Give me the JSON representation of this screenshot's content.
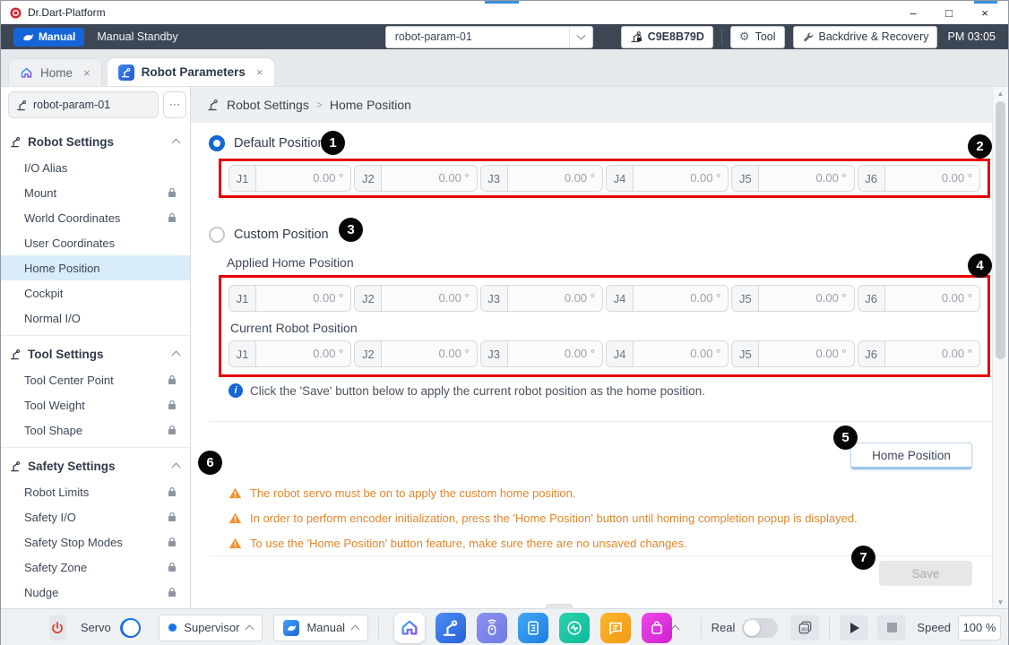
{
  "window": {
    "title": "Dr.Dart-Platform",
    "controls": {
      "minimize": "–",
      "maximize": "□",
      "close": "×"
    }
  },
  "toolbar": {
    "mode_button": "Manual",
    "status": "Manual Standby",
    "param_select": "robot-param-01",
    "serial": "C9E8B79D",
    "tool_button": "Tool",
    "gear_glyph": "⚙",
    "backdrive_button": "Backdrive & Recovery",
    "clock": "PM 03:05"
  },
  "tabs": [
    {
      "label": "Home",
      "close": "×"
    },
    {
      "label": "Robot Parameters",
      "close": "×"
    }
  ],
  "sidebar": {
    "param_name": "robot-param-01",
    "more_label": "⋯",
    "sections": [
      {
        "label": "Robot Settings",
        "items": [
          {
            "label": "I/O Alias",
            "locked": false,
            "active": false
          },
          {
            "label": "Mount",
            "locked": true,
            "active": false
          },
          {
            "label": "World Coordinates",
            "locked": true,
            "active": false
          },
          {
            "label": "User Coordinates",
            "locked": false,
            "active": false
          },
          {
            "label": "Home Position",
            "locked": false,
            "active": true
          },
          {
            "label": "Cockpit",
            "locked": false,
            "active": false
          },
          {
            "label": "Normal I/O",
            "locked": false,
            "active": false
          }
        ]
      },
      {
        "label": "Tool Settings",
        "items": [
          {
            "label": "Tool Center Point",
            "locked": true,
            "active": false
          },
          {
            "label": "Tool Weight",
            "locked": true,
            "active": false
          },
          {
            "label": "Tool Shape",
            "locked": true,
            "active": false
          }
        ]
      },
      {
        "label": "Safety Settings",
        "items": [
          {
            "label": "Robot Limits",
            "locked": true,
            "active": false
          },
          {
            "label": "Safety I/O",
            "locked": true,
            "active": false
          },
          {
            "label": "Safety Stop Modes",
            "locked": true,
            "active": false
          },
          {
            "label": "Safety Zone",
            "locked": true,
            "active": false
          },
          {
            "label": "Nudge",
            "locked": true,
            "active": false
          }
        ]
      }
    ]
  },
  "breadcrumb": {
    "parent": "Robot Settings",
    "separator": ">",
    "current": "Home Position"
  },
  "main": {
    "default_position_label": "Default Position",
    "custom_position_label": "Custom Position",
    "applied_home_label": "Applied Home Position",
    "current_robot_label": "Current Robot Position",
    "joints": [
      "J1",
      "J2",
      "J3",
      "J4",
      "J5",
      "J6"
    ],
    "unit": "°",
    "rows": {
      "default": [
        "0.00",
        "0.00",
        "0.00",
        "0.00",
        "0.00",
        "0.00"
      ],
      "applied": [
        "0.00",
        "0.00",
        "0.00",
        "0.00",
        "0.00",
        "0.00"
      ],
      "current": [
        "0.00",
        "0.00",
        "0.00",
        "0.00",
        "0.00",
        "0.00"
      ]
    },
    "info_note": "Click the 'Save' button below to apply the current robot position as the home position.",
    "warnings": [
      "The robot servo must be on to apply the custom home position.",
      "In order to perform encoder initialization, press the 'Home Position' button until homing completion popup is displayed.",
      "To use the 'Home Position' button feature, make sure there are no unsaved changes."
    ],
    "home_position_button": "Home Position",
    "save_button": "Save"
  },
  "annotations": [
    "1",
    "2",
    "3",
    "4",
    "5",
    "6",
    "7"
  ],
  "bottombar": {
    "servo_label": "Servo",
    "role_label": "Supervisor",
    "mode_label": "Manual",
    "real_label": "Real",
    "speed_label": "Speed",
    "speed_value": "100 %"
  },
  "colors": {
    "accent_blue": "#1a73e8",
    "toolbar_bg": "#3c4654",
    "warning_orange": "#e2862c",
    "annotation_red": "#e60000",
    "active_item_bg": "#d9ecf9",
    "disabled_gray": "#e7e7e7"
  }
}
